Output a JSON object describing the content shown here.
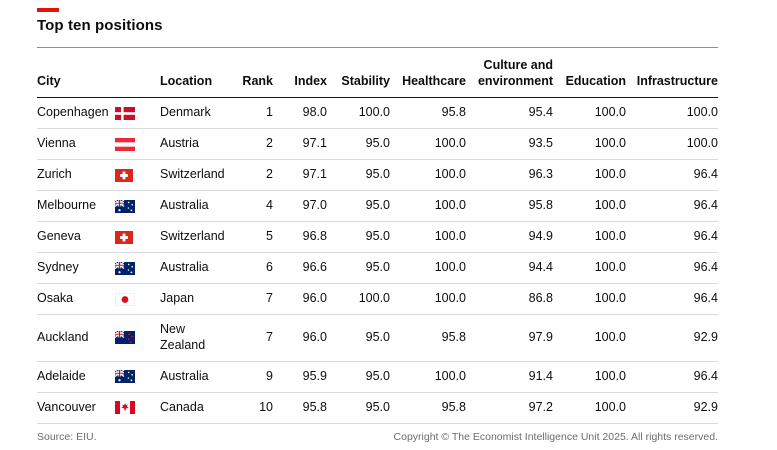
{
  "page": {
    "title": "Top ten positions",
    "accent_color": "#e3120b"
  },
  "table": {
    "headers": {
      "city": "City",
      "location": "Location",
      "rank": "Rank",
      "index": "Index",
      "stability": "Stability",
      "healthcare": "Healthcare",
      "culture": "Culture and environment",
      "education": "Education",
      "infrastructure": "Infrastructure"
    },
    "rows": [
      {
        "city": "Copenhagen",
        "flag": "denmark",
        "location": "Denmark",
        "rank": "1",
        "index": "98.0",
        "stability": "100.0",
        "healthcare": "95.8",
        "culture": "95.4",
        "education": "100.0",
        "infrastructure": "100.0"
      },
      {
        "city": "Vienna",
        "flag": "austria",
        "location": "Austria",
        "rank": "2",
        "index": "97.1",
        "stability": "95.0",
        "healthcare": "100.0",
        "culture": "93.5",
        "education": "100.0",
        "infrastructure": "100.0"
      },
      {
        "city": "Zurich",
        "flag": "switzerland",
        "location": "Switzerland",
        "rank": "2",
        "index": "97.1",
        "stability": "95.0",
        "healthcare": "100.0",
        "culture": "96.3",
        "education": "100.0",
        "infrastructure": "96.4"
      },
      {
        "city": "Melbourne",
        "flag": "australia",
        "location": "Australia",
        "rank": "4",
        "index": "97.0",
        "stability": "95.0",
        "healthcare": "100.0",
        "culture": "95.8",
        "education": "100.0",
        "infrastructure": "96.4"
      },
      {
        "city": "Geneva",
        "flag": "switzerland",
        "location": "Switzerland",
        "rank": "5",
        "index": "96.8",
        "stability": "95.0",
        "healthcare": "100.0",
        "culture": "94.9",
        "education": "100.0",
        "infrastructure": "96.4"
      },
      {
        "city": "Sydney",
        "flag": "australia",
        "location": "Australia",
        "rank": "6",
        "index": "96.6",
        "stability": "95.0",
        "healthcare": "100.0",
        "culture": "94.4",
        "education": "100.0",
        "infrastructure": "96.4"
      },
      {
        "city": "Osaka",
        "flag": "japan",
        "location": "Japan",
        "rank": "7",
        "index": "96.0",
        "stability": "100.0",
        "healthcare": "100.0",
        "culture": "86.8",
        "education": "100.0",
        "infrastructure": "96.4"
      },
      {
        "city": "Auckland",
        "flag": "new_zealand",
        "location": "New Zealand",
        "rank": "7",
        "index": "96.0",
        "stability": "95.0",
        "healthcare": "95.8",
        "culture": "97.9",
        "education": "100.0",
        "infrastructure": "92.9"
      },
      {
        "city": "Adelaide",
        "flag": "australia",
        "location": "Australia",
        "rank": "9",
        "index": "95.9",
        "stability": "95.0",
        "healthcare": "100.0",
        "culture": "91.4",
        "education": "100.0",
        "infrastructure": "96.4"
      },
      {
        "city": "Vancouver",
        "flag": "canada",
        "location": "Canada",
        "rank": "10",
        "index": "95.8",
        "stability": "95.0",
        "healthcare": "95.8",
        "culture": "97.2",
        "education": "100.0",
        "infrastructure": "92.9"
      }
    ]
  },
  "footer": {
    "source": "Source: EIU.",
    "copyright": "Copyright © The Economist Intelligence Unit 2025. All rights reserved."
  },
  "chart_data": {
    "type": "table",
    "title": "Top ten positions",
    "columns": [
      "City",
      "Location",
      "Rank",
      "Index",
      "Stability",
      "Healthcare",
      "Culture and environment",
      "Education",
      "Infrastructure"
    ],
    "rows": [
      [
        "Copenhagen",
        "Denmark",
        1,
        98.0,
        100.0,
        95.8,
        95.4,
        100.0,
        100.0
      ],
      [
        "Vienna",
        "Austria",
        2,
        97.1,
        95.0,
        100.0,
        93.5,
        100.0,
        100.0
      ],
      [
        "Zurich",
        "Switzerland",
        2,
        97.1,
        95.0,
        100.0,
        96.3,
        100.0,
        96.4
      ],
      [
        "Melbourne",
        "Australia",
        4,
        97.0,
        95.0,
        100.0,
        95.8,
        100.0,
        96.4
      ],
      [
        "Geneva",
        "Switzerland",
        5,
        96.8,
        95.0,
        100.0,
        94.9,
        100.0,
        96.4
      ],
      [
        "Sydney",
        "Australia",
        6,
        96.6,
        95.0,
        100.0,
        94.4,
        100.0,
        96.4
      ],
      [
        "Osaka",
        "Japan",
        7,
        96.0,
        100.0,
        100.0,
        86.8,
        100.0,
        96.4
      ],
      [
        "Auckland",
        "New Zealand",
        7,
        96.0,
        95.0,
        95.8,
        97.9,
        100.0,
        92.9
      ],
      [
        "Adelaide",
        "Australia",
        9,
        95.9,
        95.0,
        100.0,
        91.4,
        100.0,
        96.4
      ],
      [
        "Vancouver",
        "Canada",
        10,
        95.8,
        95.0,
        95.8,
        97.2,
        100.0,
        92.9
      ]
    ],
    "source": "Source: EIU."
  }
}
